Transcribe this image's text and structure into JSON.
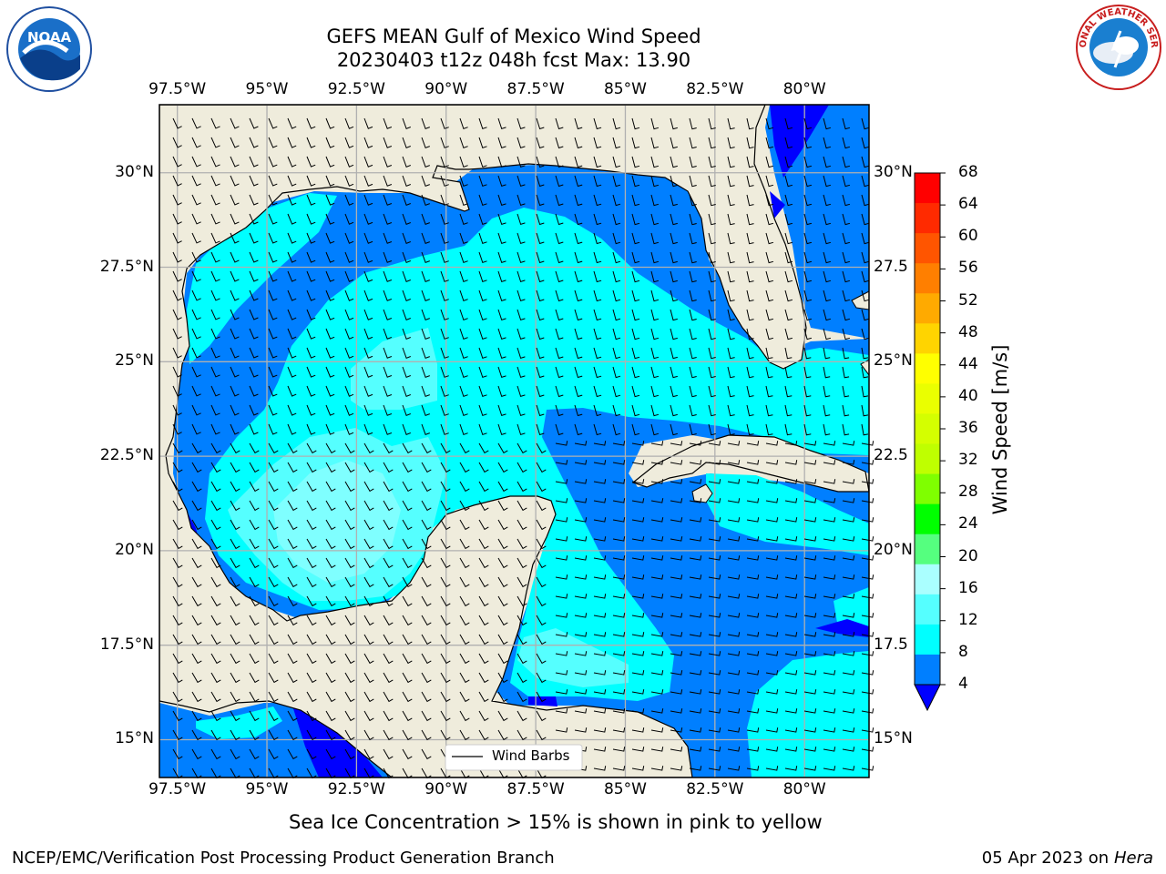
{
  "header": {
    "title_line1": "GEFS MEAN Gulf of Mexico Wind Speed",
    "title_line2": "20230403 t12z 048h fcst   Max: 13.90"
  },
  "map": {
    "lon_ticks": [
      "97.5°W",
      "95°W",
      "92.5°W",
      "90°W",
      "87.5°W",
      "85°W",
      "82.5°W",
      "80°W"
    ],
    "lat_ticks": [
      "30°N",
      "27.5°N",
      "25°N",
      "22.5°N",
      "20°N",
      "17.5°N",
      "15°N"
    ],
    "lat_ticks_right": [
      "30°N",
      "27.5",
      "25°N",
      "22.5",
      "20°N",
      "17.5",
      "15°N"
    ],
    "lon_range": [
      -98,
      -78.2
    ],
    "lat_range": [
      14,
      31.8
    ],
    "legend_label": "Wind Barbs"
  },
  "colorbar": {
    "label": "Wind Speed [m/s]",
    "ticks": [
      "68",
      "64",
      "60",
      "56",
      "52",
      "48",
      "44",
      "40",
      "36",
      "32",
      "28",
      "24",
      "20",
      "16",
      "12",
      "8",
      "4"
    ],
    "colors": [
      "#ff0000",
      "#ff2a00",
      "#ff5500",
      "#ff7f00",
      "#ffaa00",
      "#ffd400",
      "#ffff00",
      "#eaff00",
      "#d4ff00",
      "#bfff00",
      "#7fff00",
      "#00ff00",
      "#55ff7f",
      "#aaffff",
      "#55ffff",
      "#00ffff",
      "#007fff",
      "#0000ff"
    ]
  },
  "logos": {
    "left": "NOAA",
    "right": "NATIONAL WEATHER SERVICE"
  },
  "footer": {
    "note": "Sea Ice Concentration > 15% is shown in pink to yellow",
    "left": "NCEP/EMC/Verification Post Processing Product Generation Branch",
    "date": "05 Apr 2023 on ",
    "machine": "Hera"
  }
}
